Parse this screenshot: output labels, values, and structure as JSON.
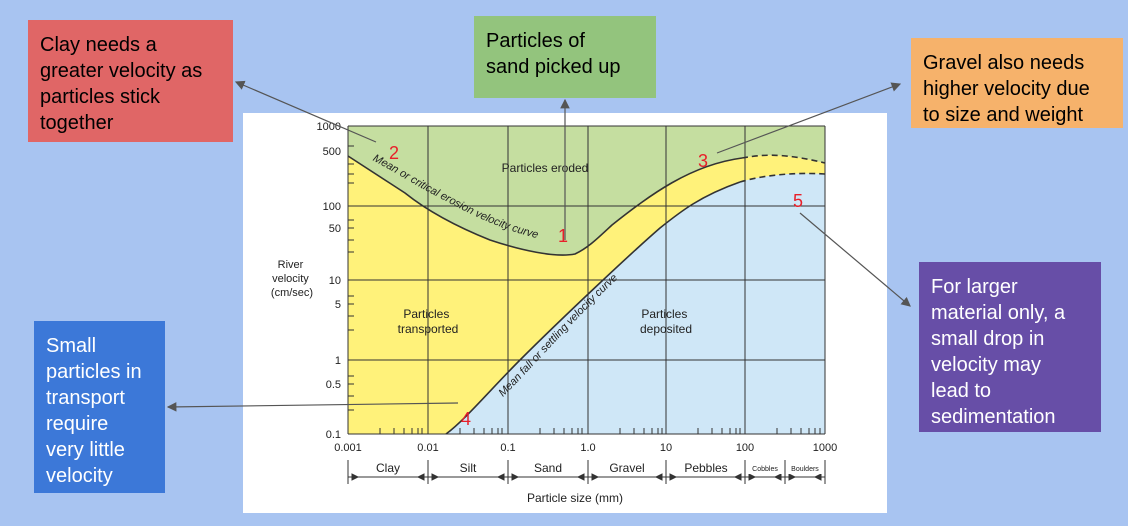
{
  "callouts": {
    "clay": [
      "Clay needs a",
      "greater velocity as",
      "particles stick",
      "together"
    ],
    "sand": [
      "Particles of",
      "sand picked up"
    ],
    "gravel": [
      "Gravel also needs",
      "higher velocity due",
      "to size and weight"
    ],
    "small": [
      "Small",
      "particles in",
      "transport",
      "require",
      "very little",
      "velocity"
    ],
    "large": [
      "For larger",
      "material only, a",
      "small drop in",
      "velocity may",
      "lead to",
      "sedimentation"
    ]
  },
  "diagram": {
    "y_title": [
      "River",
      "velocity",
      "(cm/sec)"
    ],
    "x_title": "Particle size (mm)",
    "y_ticks": [
      "1000",
      "500",
      "100",
      "50",
      "10",
      "5",
      "1",
      "0.5",
      "0.1"
    ],
    "x_ticks": [
      "0.001",
      "0.01",
      "0.1",
      "1.0",
      "10",
      "100",
      "1000"
    ],
    "size_classes": [
      "Clay",
      "Silt",
      "Sand",
      "Gravel",
      "Pebbles",
      "Cobbles",
      "Boulders"
    ],
    "region_labels": {
      "eroded": "Particles eroded",
      "transported": [
        "Particles",
        "transported"
      ],
      "deposited": [
        "Particles",
        "deposited"
      ]
    },
    "curve_labels": {
      "erosion": "Mean or critical erosion velocity curve",
      "settling": "Mean fall or settling velocity curve"
    },
    "markers": [
      "1",
      "2",
      "3",
      "4",
      "5"
    ],
    "colors": {
      "eroded": "#c5dea0",
      "transported": "#fff27a",
      "deposited": "#cfe7f7",
      "marker": "#e8202a",
      "arrow": "#555555"
    }
  }
}
